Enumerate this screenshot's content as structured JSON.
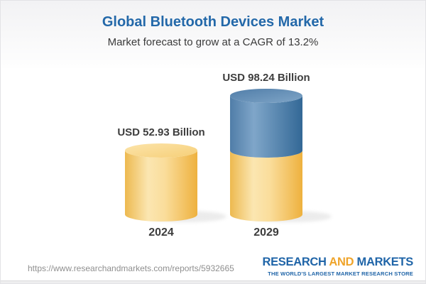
{
  "header": {
    "title": "Global Bluetooth Devices Market",
    "subtitle": "Market forecast to grow at a CAGR of 13.2%"
  },
  "chart_data": {
    "type": "bar",
    "subtype": "3d-cylinder-stacked",
    "title": "Global Bluetooth Devices Market",
    "subtitle": "Market forecast to grow at a CAGR of 13.2%",
    "categories": [
      "2024",
      "2029"
    ],
    "values": [
      52.93,
      98.24
    ],
    "value_labels": [
      "USD 52.93 Billion",
      "USD 98.24 Billion"
    ],
    "unit": "USD Billion",
    "cagr_percent": 13.2,
    "axes": "none",
    "legend": "none",
    "stacking_note": "2029 cylinder is stacked: yellow bottom segment equals the 2024 value (52.93), blue top segment is the incremental growth to 98.24",
    "colors": {
      "yellow_side": [
        "#EDB94F",
        "#FBE6B1",
        "#FADD9B",
        "#EEB13E"
      ],
      "yellow_top": [
        "#FCE4AA",
        "#F6CF78"
      ],
      "blue_side": [
        "#507DA8",
        "#7FA6C9",
        "#336896"
      ],
      "blue_top": [
        "#517EA9",
        "#7FA5C7"
      ],
      "title_blue": "#2368A9",
      "label_gray": "#3E3E3E"
    }
  },
  "footer": {
    "url": "https://www.researchandmarkets.com/reports/5932665",
    "logo": {
      "research": "RESEARCH",
      "and": "AND",
      "markets": "MARKETS",
      "tagline": "THE WORLD'S LARGEST MARKET RESEARCH STORE",
      "blue": "#2065A8",
      "gold": "#EFA42A"
    }
  }
}
